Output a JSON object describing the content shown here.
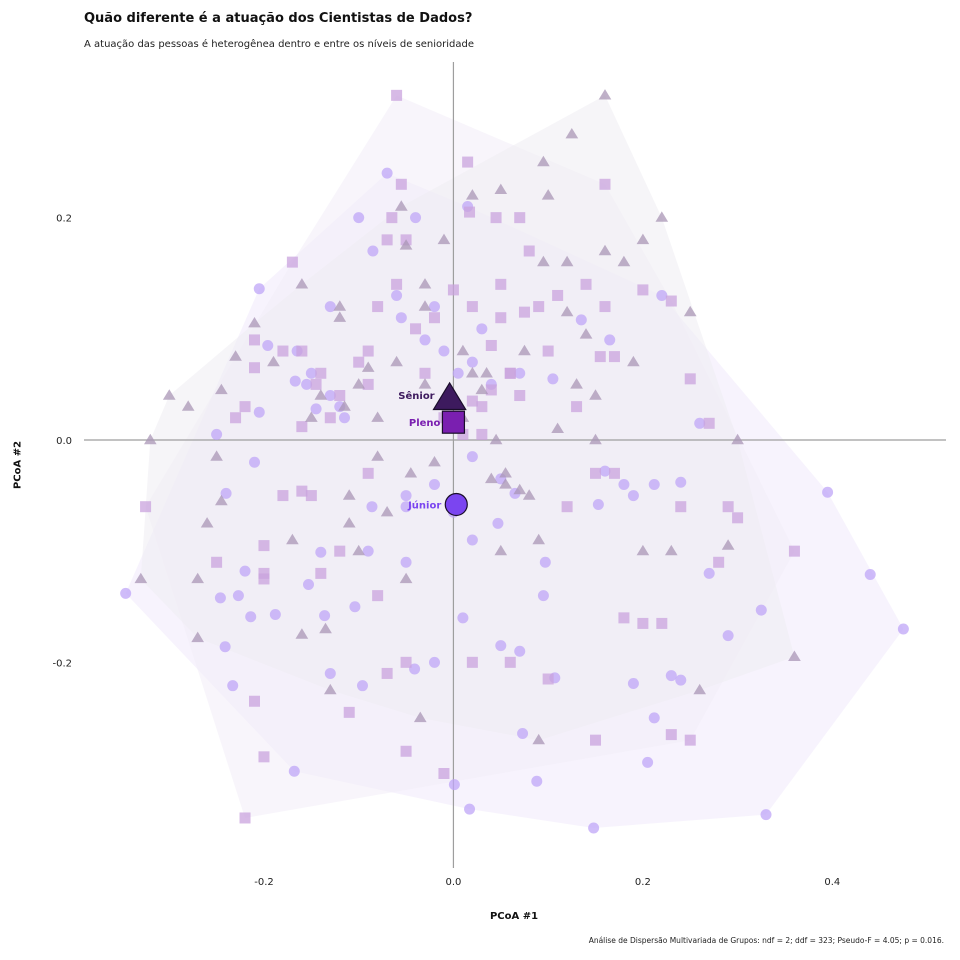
{
  "chart_data": {
    "type": "scatter",
    "title": "Quão diferente é a atuação dos Cientistas de Dados?",
    "subtitle": "A atuação das pessoas é heterogênea dentro e entre os níveis de senioridade",
    "xlabel": "PCoA #1",
    "ylabel": "PCoA #2",
    "caption": "Análise de Dispersão Multivariada de Grupos: ndf = 2; ddf = 323; Pseudo-F = 4.05; p = 0.016.",
    "xlim": [
      -0.39,
      0.52
    ],
    "ylim": [
      -0.385,
      0.34
    ],
    "x_ticks": [
      -0.2,
      0.0,
      0.2,
      0.4
    ],
    "x_tick_labels": [
      "-0.2",
      "0.0",
      "0.2",
      "0.4"
    ],
    "y_ticks": [
      -0.2,
      0.0,
      0.2
    ],
    "y_tick_labels": [
      "-0.2",
      "0.0",
      "0.2"
    ],
    "grid": false,
    "reference_lines": {
      "x": 0,
      "y": 0
    },
    "groups": [
      {
        "name": "Júnior",
        "marker": "circle",
        "color": "#7b45f0",
        "point_color": "#bfa6f7",
        "hull_fill": "#f0eafb",
        "centroid": [
          0.003,
          -0.058
        ],
        "points": [
          [
            -0.346,
            -0.138
          ],
          [
            -0.205,
            0.136
          ],
          [
            -0.196,
            0.085
          ],
          [
            -0.167,
            0.053
          ],
          [
            -0.205,
            0.025
          ],
          [
            -0.24,
            -0.048
          ],
          [
            -0.22,
            -0.118
          ],
          [
            -0.246,
            -0.142
          ],
          [
            -0.227,
            -0.14
          ],
          [
            -0.241,
            -0.186
          ],
          [
            -0.233,
            -0.221
          ],
          [
            -0.214,
            -0.159
          ],
          [
            -0.188,
            -0.157
          ],
          [
            -0.168,
            -0.298
          ],
          [
            -0.153,
            -0.13
          ],
          [
            -0.14,
            -0.101
          ],
          [
            -0.136,
            -0.158
          ],
          [
            -0.13,
            -0.21
          ],
          [
            -0.104,
            -0.15
          ],
          [
            -0.086,
            -0.06
          ],
          [
            -0.09,
            -0.1
          ],
          [
            -0.096,
            -0.221
          ],
          [
            -0.05,
            -0.11
          ],
          [
            -0.041,
            -0.206
          ],
          [
            -0.02,
            -0.2
          ],
          [
            -0.05,
            -0.05
          ],
          [
            0.001,
            -0.31
          ],
          [
            0.01,
            -0.16
          ],
          [
            0.017,
            -0.332
          ],
          [
            0.02,
            -0.09
          ],
          [
            0.047,
            -0.075
          ],
          [
            0.05,
            -0.185
          ],
          [
            0.07,
            -0.19
          ],
          [
            0.073,
            -0.264
          ],
          [
            0.088,
            -0.307
          ],
          [
            0.097,
            -0.11
          ],
          [
            0.095,
            -0.14
          ],
          [
            0.107,
            -0.214
          ],
          [
            0.148,
            -0.349
          ],
          [
            0.153,
            -0.058
          ],
          [
            0.16,
            -0.028
          ],
          [
            0.18,
            -0.04
          ],
          [
            0.19,
            -0.219
          ],
          [
            0.19,
            -0.05
          ],
          [
            0.205,
            -0.29
          ],
          [
            0.212,
            -0.04
          ],
          [
            0.24,
            -0.038
          ],
          [
            0.212,
            -0.25
          ],
          [
            0.23,
            -0.212
          ],
          [
            0.24,
            -0.216
          ],
          [
            0.27,
            -0.12
          ],
          [
            0.29,
            -0.176
          ],
          [
            0.325,
            -0.153
          ],
          [
            0.33,
            -0.337
          ],
          [
            0.395,
            -0.047
          ],
          [
            0.44,
            -0.121
          ],
          [
            0.475,
            -0.17
          ],
          [
            -0.165,
            0.08
          ],
          [
            -0.15,
            0.06
          ],
          [
            -0.1,
            0.2
          ],
          [
            -0.085,
            0.17
          ],
          [
            -0.06,
            0.13
          ],
          [
            -0.055,
            0.11
          ],
          [
            -0.03,
            0.09
          ],
          [
            0.015,
            0.21
          ],
          [
            0.02,
            0.07
          ],
          [
            0.04,
            0.05
          ],
          [
            0.03,
            0.1
          ],
          [
            0.105,
            0.055
          ],
          [
            0.135,
            0.108
          ],
          [
            0.165,
            0.09
          ],
          [
            0.22,
            0.13
          ],
          [
            0.26,
            0.015
          ],
          [
            -0.155,
            0.05
          ],
          [
            -0.145,
            0.028
          ],
          [
            -0.13,
            0.04
          ],
          [
            -0.12,
            0.03
          ],
          [
            -0.115,
            0.02
          ],
          [
            -0.25,
            0.005
          ],
          [
            -0.21,
            -0.02
          ],
          [
            -0.05,
            -0.06
          ],
          [
            -0.02,
            -0.04
          ],
          [
            0.0,
            -0.065
          ],
          [
            0.02,
            -0.015
          ],
          [
            0.05,
            -0.035
          ],
          [
            0.065,
            -0.048
          ],
          [
            -0.01,
            0.08
          ],
          [
            0.005,
            0.06
          ],
          [
            -0.13,
            0.12
          ],
          [
            -0.07,
            0.24
          ],
          [
            -0.04,
            0.2
          ],
          [
            0.07,
            0.06
          ],
          [
            -0.02,
            0.12
          ]
        ]
      },
      {
        "name": "Pleno",
        "marker": "square",
        "color": "#7a1fb0",
        "point_color": "#c9a3dd",
        "hull_fill": "#f3ecf8",
        "centroid": [
          0.0,
          0.016
        ],
        "points": [
          [
            -0.325,
            -0.06
          ],
          [
            -0.22,
            -0.34
          ],
          [
            -0.2,
            -0.285
          ],
          [
            -0.25,
            -0.11
          ],
          [
            -0.21,
            0.065
          ],
          [
            -0.22,
            0.03
          ],
          [
            -0.17,
            0.16
          ],
          [
            -0.21,
            0.09
          ],
          [
            -0.2,
            -0.095
          ],
          [
            -0.2,
            -0.125
          ],
          [
            -0.18,
            0.08
          ],
          [
            -0.16,
            0.08
          ],
          [
            -0.16,
            0.012
          ],
          [
            -0.14,
            0.06
          ],
          [
            -0.13,
            0.02
          ],
          [
            -0.12,
            0.04
          ],
          [
            -0.09,
            0.08
          ],
          [
            -0.09,
            0.05
          ],
          [
            -0.08,
            0.12
          ],
          [
            -0.07,
            0.18
          ],
          [
            -0.06,
            0.14
          ],
          [
            -0.05,
            0.18
          ],
          [
            -0.04,
            0.1
          ],
          [
            -0.02,
            0.11
          ],
          [
            0.0,
            0.135
          ],
          [
            0.02,
            0.12
          ],
          [
            0.04,
            0.085
          ],
          [
            0.05,
            0.14
          ],
          [
            0.06,
            0.06
          ],
          [
            0.07,
            0.2
          ],
          [
            0.08,
            0.17
          ],
          [
            0.09,
            0.12
          ],
          [
            0.1,
            0.08
          ],
          [
            0.11,
            0.13
          ],
          [
            0.14,
            0.14
          ],
          [
            0.16,
            0.12
          ],
          [
            0.17,
            0.075
          ],
          [
            0.2,
            0.135
          ],
          [
            0.23,
            0.125
          ],
          [
            0.25,
            0.055
          ],
          [
            0.27,
            0.015
          ],
          [
            0.29,
            -0.06
          ],
          [
            0.3,
            -0.07
          ],
          [
            0.28,
            -0.11
          ],
          [
            0.24,
            -0.06
          ],
          [
            0.22,
            -0.165
          ],
          [
            0.2,
            -0.165
          ],
          [
            0.18,
            -0.16
          ],
          [
            0.17,
            -0.03
          ],
          [
            0.15,
            -0.03
          ],
          [
            0.12,
            -0.06
          ],
          [
            0.1,
            -0.215
          ],
          [
            0.06,
            -0.2
          ],
          [
            0.02,
            -0.2
          ],
          [
            -0.01,
            -0.3
          ],
          [
            -0.05,
            -0.2
          ],
          [
            -0.05,
            -0.28
          ],
          [
            -0.07,
            -0.21
          ],
          [
            -0.08,
            -0.14
          ],
          [
            -0.11,
            -0.245
          ],
          [
            -0.12,
            -0.1
          ],
          [
            -0.14,
            -0.12
          ],
          [
            -0.16,
            -0.046
          ],
          [
            -0.18,
            -0.05
          ],
          [
            -0.21,
            -0.235
          ],
          [
            -0.2,
            -0.12
          ],
          [
            -0.01,
            0.02
          ],
          [
            0.02,
            0.035
          ],
          [
            0.03,
            0.005
          ],
          [
            0.04,
            0.045
          ],
          [
            0.01,
            0.005
          ],
          [
            0.015,
            0.25
          ],
          [
            0.017,
            0.205
          ],
          [
            -0.055,
            0.23
          ],
          [
            -0.065,
            0.2
          ],
          [
            0.045,
            0.2
          ],
          [
            0.075,
            0.115
          ],
          [
            0.13,
            0.03
          ],
          [
            0.16,
            0.23
          ],
          [
            0.155,
            0.075
          ],
          [
            0.23,
            -0.265
          ],
          [
            0.25,
            -0.27
          ],
          [
            0.36,
            -0.1
          ],
          [
            -0.06,
            0.31
          ],
          [
            0.15,
            -0.27
          ],
          [
            0.06,
            0.06
          ],
          [
            0.05,
            0.11
          ],
          [
            0.03,
            0.03
          ],
          [
            -0.15,
            -0.05
          ],
          [
            -0.145,
            0.05
          ],
          [
            -0.23,
            0.02
          ],
          [
            -0.1,
            0.07
          ],
          [
            -0.09,
            -0.03
          ],
          [
            0.07,
            0.04
          ],
          [
            -0.03,
            0.06
          ]
        ]
      },
      {
        "name": "Sênior",
        "marker": "triangle",
        "color": "#3d1a5e",
        "point_color": "#a995b5",
        "hull_fill": "#efedf2",
        "centroid": [
          -0.004,
          0.037
        ],
        "points": [
          [
            -0.33,
            -0.125
          ],
          [
            -0.32,
            0.0
          ],
          [
            -0.3,
            0.04
          ],
          [
            -0.28,
            0.03
          ],
          [
            -0.27,
            -0.125
          ],
          [
            -0.27,
            -0.178
          ],
          [
            -0.26,
            -0.075
          ],
          [
            -0.25,
            -0.015
          ],
          [
            -0.245,
            -0.055
          ],
          [
            -0.245,
            0.045
          ],
          [
            -0.23,
            0.075
          ],
          [
            -0.21,
            0.105
          ],
          [
            -0.19,
            0.07
          ],
          [
            -0.17,
            -0.09
          ],
          [
            -0.16,
            0.14
          ],
          [
            -0.16,
            -0.175
          ],
          [
            -0.15,
            0.02
          ],
          [
            -0.14,
            0.04
          ],
          [
            -0.135,
            -0.17
          ],
          [
            -0.13,
            -0.225
          ],
          [
            -0.12,
            0.12
          ],
          [
            -0.115,
            0.03
          ],
          [
            -0.11,
            -0.05
          ],
          [
            -0.11,
            -0.075
          ],
          [
            -0.1,
            0.05
          ],
          [
            -0.1,
            -0.1
          ],
          [
            -0.09,
            0.065
          ],
          [
            -0.08,
            -0.015
          ],
          [
            -0.07,
            -0.065
          ],
          [
            -0.06,
            0.07
          ],
          [
            -0.055,
            0.21
          ],
          [
            -0.05,
            0.175
          ],
          [
            -0.05,
            -0.125
          ],
          [
            -0.035,
            -0.25
          ],
          [
            -0.03,
            0.14
          ],
          [
            -0.03,
            0.05
          ],
          [
            -0.01,
            0.18
          ],
          [
            0.01,
            0.02
          ],
          [
            0.02,
            0.22
          ],
          [
            0.03,
            0.045
          ],
          [
            0.035,
            0.06
          ],
          [
            0.04,
            -0.035
          ],
          [
            0.045,
            0.0
          ],
          [
            0.055,
            -0.03
          ],
          [
            0.055,
            -0.04
          ],
          [
            0.07,
            -0.045
          ],
          [
            0.075,
            0.08
          ],
          [
            0.08,
            -0.05
          ],
          [
            0.09,
            -0.09
          ],
          [
            0.09,
            -0.27
          ],
          [
            0.095,
            0.25
          ],
          [
            0.1,
            0.22
          ],
          [
            0.12,
            0.16
          ],
          [
            0.12,
            0.115
          ],
          [
            0.13,
            0.05
          ],
          [
            0.14,
            0.095
          ],
          [
            0.15,
            0.0
          ],
          [
            0.15,
            0.04
          ],
          [
            0.16,
            0.17
          ],
          [
            0.18,
            0.16
          ],
          [
            0.19,
            0.07
          ],
          [
            0.2,
            0.18
          ],
          [
            0.2,
            -0.1
          ],
          [
            0.22,
            0.2
          ],
          [
            0.23,
            -0.1
          ],
          [
            0.25,
            0.115
          ],
          [
            0.26,
            -0.225
          ],
          [
            0.29,
            -0.095
          ],
          [
            0.3,
            0.0
          ],
          [
            0.36,
            -0.195
          ],
          [
            0.125,
            0.275
          ],
          [
            0.16,
            0.31
          ],
          [
            0.05,
            0.225
          ],
          [
            -0.08,
            0.02
          ],
          [
            -0.03,
            0.12
          ],
          [
            -0.12,
            0.11
          ],
          [
            0.02,
            0.06
          ],
          [
            -0.02,
            -0.02
          ],
          [
            0.11,
            0.01
          ],
          [
            0.05,
            -0.1
          ],
          [
            0.095,
            0.16
          ],
          [
            0.01,
            0.08
          ],
          [
            -0.045,
            -0.03
          ]
        ]
      }
    ]
  }
}
